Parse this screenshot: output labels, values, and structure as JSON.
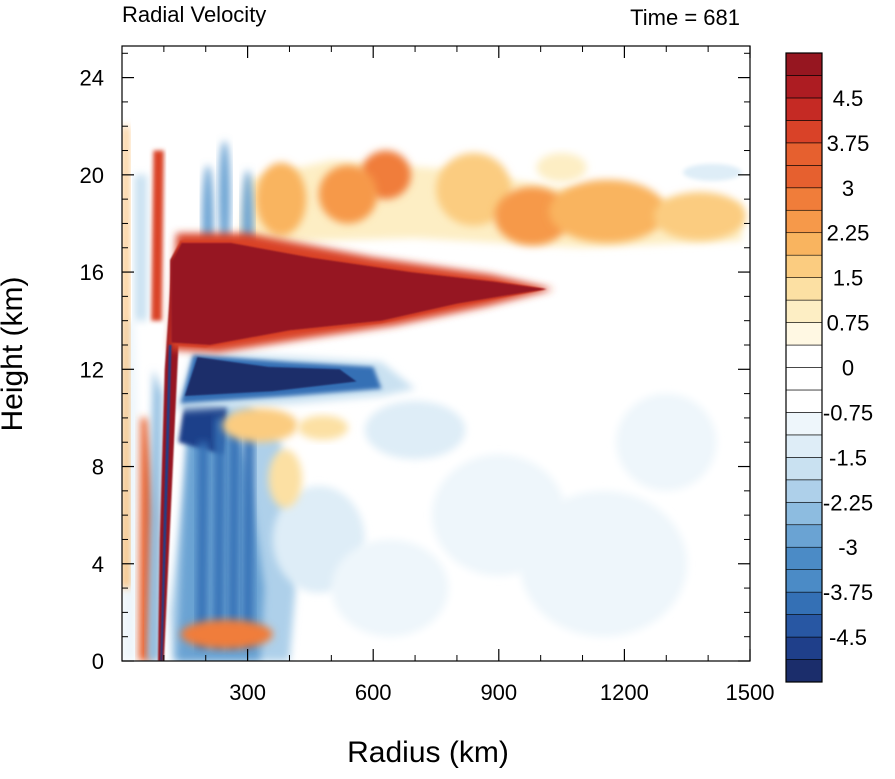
{
  "chart_data": {
    "type": "heatmap",
    "title_left": "Radial Velocity",
    "title_right": "Time = 681",
    "xlabel": "Radius (km)",
    "ylabel": "Height (km)",
    "xlim": [
      0,
      1500
    ],
    "ylim": [
      0,
      25.3
    ],
    "xticks": [
      300,
      600,
      900,
      1200,
      1500
    ],
    "xtick_labels": [
      "300",
      "600",
      "900",
      "1200",
      "1500"
    ],
    "yticks": [
      0,
      4,
      8,
      12,
      16,
      20,
      24
    ],
    "ytick_labels": [
      "0",
      "4",
      "8",
      "12",
      "16",
      "20",
      "24"
    ],
    "grid": false,
    "colorbar": {
      "placement": "right",
      "levels": [
        -5.25,
        -4.875,
        -4.5,
        -4.125,
        -3.75,
        -3.375,
        -3,
        -2.625,
        -2.25,
        -1.875,
        -1.5,
        -1.125,
        -0.75,
        -0.375,
        0,
        0.375,
        0.75,
        1.125,
        1.5,
        1.875,
        2.25,
        2.625,
        3,
        3.375,
        3.75,
        4.125,
        4.5,
        4.875,
        5.25
      ],
      "labels": [
        "4.5",
        "3.75",
        "3",
        "2.25",
        "1.5",
        "0.75",
        "0",
        "-0.75",
        "-1.5",
        "-2.25",
        "-3",
        "-3.75",
        "-4.5"
      ],
      "label_values": [
        4.5,
        3.75,
        3,
        2.25,
        1.5,
        0.75,
        0,
        -0.75,
        -1.5,
        -2.25,
        -3,
        -3.75,
        -4.5
      ],
      "colors_low_to_high": [
        "#1b2d6b",
        "#1f3f8a",
        "#2857a3",
        "#3470b5",
        "#4b8bc6",
        "#6aa3d3",
        "#8dbce0",
        "#aed0ea",
        "#c9e1f1",
        "#deedf7",
        "#eef6fb",
        "#ffffff",
        "#ffffff",
        "#fff8e3",
        "#fdeec4",
        "#fce0a3",
        "#fbcc80",
        "#f9b45f",
        "#f6994a",
        "#f07d3a",
        "#e6602f",
        "#d94228",
        "#c52a24",
        "#ad1c22",
        "#961620"
      ]
    },
    "features": [
      {
        "name": "upper outflow jet",
        "sign": "positive",
        "r_range": [
          100,
          1020
        ],
        "z_range": [
          12.8,
          17.3
        ],
        "peak": 5.25
      },
      {
        "name": "mid-level inflow",
        "sign": "negative",
        "r_range": [
          100,
          620
        ],
        "z_range": [
          10.5,
          12.8
        ],
        "peak": -5.0
      },
      {
        "name": "eyewall outflow tongue",
        "sign": "positive",
        "r_range": [
          90,
          170
        ],
        "z_range": [
          0,
          16
        ],
        "peak": 5.25
      },
      {
        "name": "lower inflow",
        "sign": "negative",
        "r_range": [
          95,
          400
        ],
        "z_range": [
          0,
          10.5
        ],
        "peak": -5.0
      },
      {
        "name": "upper-level outflow patches",
        "sign": "positive",
        "r_range": [
          300,
          1500
        ],
        "z_range": [
          17,
          21
        ],
        "peak": 3.0
      },
      {
        "name": "upper-level inflow patch",
        "sign": "negative",
        "r_range": [
          1300,
          1480
        ],
        "z_range": [
          19.8,
          20.4
        ],
        "peak": -1.5
      }
    ]
  }
}
